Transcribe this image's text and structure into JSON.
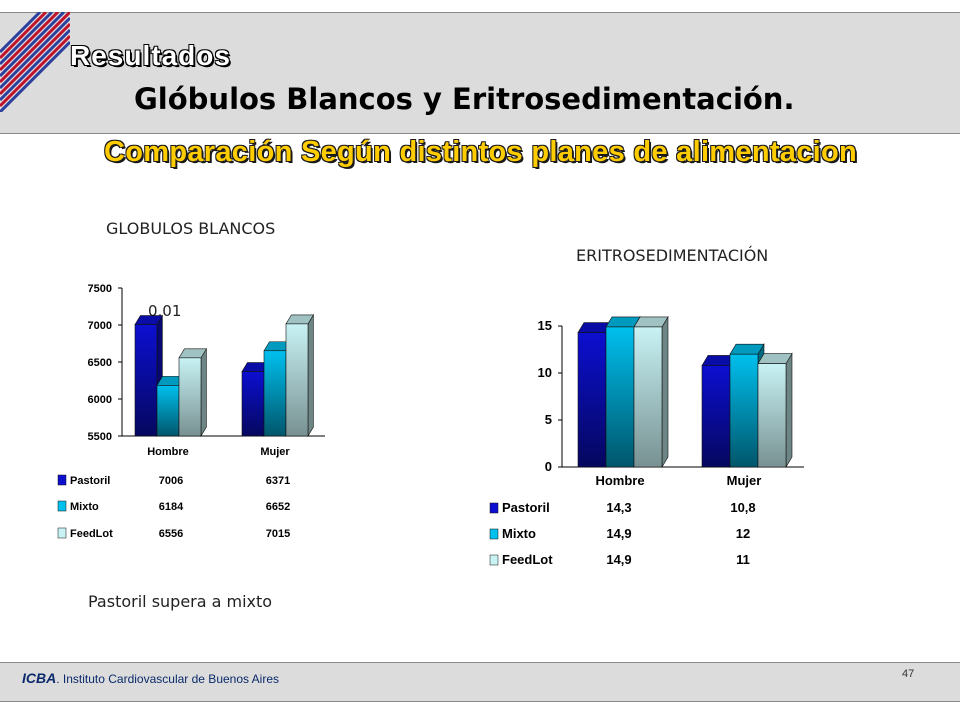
{
  "slide": {
    "section": "Resultados",
    "title": "Glóbulos Blancos y Eritrosedimentación.",
    "subtitle": "Comparación Según distintos planes de alimentacion",
    "note": "Pastoril supera a mixto",
    "footer_org_bold": "ICBA",
    "footer_org_rest": ". Instituto Cardiovascular de Buenos Aires",
    "page_number": "47"
  },
  "colors": {
    "header_band": "#dcdcdc",
    "title_accent": "#ffcc00",
    "pastoril": "#0c0fd0",
    "mixto": "#00c0ee",
    "feedlot": "#c8f2f4"
  },
  "chart_data": [
    {
      "type": "bar",
      "heading": "GLOBULOS BLANCOS",
      "annotation": "0,01",
      "categories": [
        "Hombre",
        "Mujer"
      ],
      "ylim": [
        5500,
        7500
      ],
      "yticks": [
        "7500",
        "7000",
        "6500",
        "6000",
        "5500"
      ],
      "series": [
        {
          "name": "Pastoril",
          "values": [
            7006,
            6371
          ],
          "labels": [
            "7006",
            "6371"
          ]
        },
        {
          "name": "Mixto",
          "values": [
            6184,
            6652
          ],
          "labels": [
            "6184",
            "6652"
          ]
        },
        {
          "name": "FeedLot",
          "values": [
            6556,
            7015
          ],
          "labels": [
            "6556",
            "7015"
          ]
        }
      ],
      "legend": "data table below chart"
    },
    {
      "type": "bar",
      "heading": "ERITROSEDIMENTACIÓN",
      "categories": [
        "Hombre",
        "Mujer"
      ],
      "ylim": [
        0,
        15
      ],
      "yticks": [
        "15",
        "10",
        "5",
        "0"
      ],
      "series": [
        {
          "name": "Pastoril",
          "values": [
            14.3,
            10.8
          ],
          "labels": [
            "14,3",
            "10,8"
          ]
        },
        {
          "name": "Mixto",
          "values": [
            14.9,
            12
          ],
          "labels": [
            "14,9",
            "12"
          ]
        },
        {
          "name": "FeedLot",
          "values": [
            14.9,
            11
          ],
          "labels": [
            "14,9",
            "11"
          ]
        }
      ],
      "legend": "data table below chart"
    }
  ]
}
